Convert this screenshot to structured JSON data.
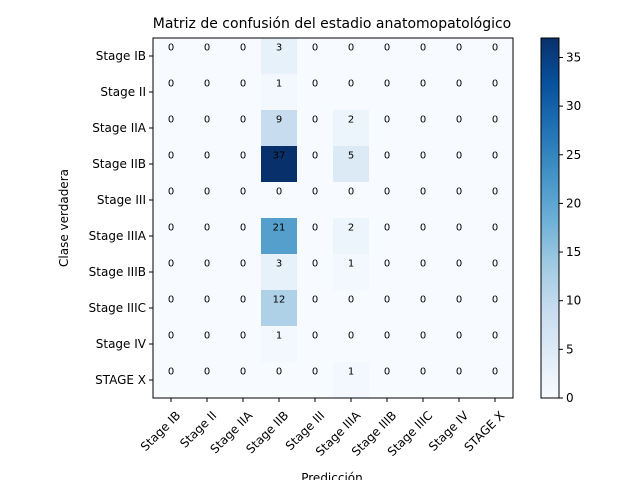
{
  "chart_data": {
    "type": "heatmap",
    "title": "Matriz de confusión del estadio anatomopatológico",
    "xlabel": "Predicción",
    "ylabel": "Clase verdadera",
    "x_categories": [
      "Stage IB",
      "Stage II",
      "Stage IIA",
      "Stage IIB",
      "Stage III",
      "Stage IIIA",
      "Stage IIIB",
      "Stage IIIC",
      "Stage IV",
      "STAGE X"
    ],
    "y_categories": [
      "Stage IB",
      "Stage II",
      "Stage IIA",
      "Stage IIB",
      "Stage III",
      "Stage IIIA",
      "Stage IIIB",
      "Stage IIIC",
      "Stage IV",
      "STAGE X"
    ],
    "values": [
      [
        0,
        0,
        0,
        3,
        0,
        0,
        0,
        0,
        0,
        0
      ],
      [
        0,
        0,
        0,
        1,
        0,
        0,
        0,
        0,
        0,
        0
      ],
      [
        0,
        0,
        0,
        9,
        0,
        2,
        0,
        0,
        0,
        0
      ],
      [
        0,
        0,
        0,
        37,
        0,
        5,
        0,
        0,
        0,
        0
      ],
      [
        0,
        0,
        0,
        0,
        0,
        0,
        0,
        0,
        0,
        0
      ],
      [
        0,
        0,
        0,
        21,
        0,
        2,
        0,
        0,
        0,
        0
      ],
      [
        0,
        0,
        0,
        3,
        0,
        1,
        0,
        0,
        0,
        0
      ],
      [
        0,
        0,
        0,
        12,
        0,
        0,
        0,
        0,
        0,
        0
      ],
      [
        0,
        0,
        0,
        1,
        0,
        0,
        0,
        0,
        0,
        0
      ],
      [
        0,
        0,
        0,
        0,
        0,
        1,
        0,
        0,
        0,
        0
      ]
    ],
    "colormap": "Blues",
    "colorbar": {
      "range": [
        0,
        37
      ],
      "ticks": [
        0,
        5,
        10,
        15,
        20,
        25,
        30,
        35
      ]
    },
    "grid": false
  }
}
